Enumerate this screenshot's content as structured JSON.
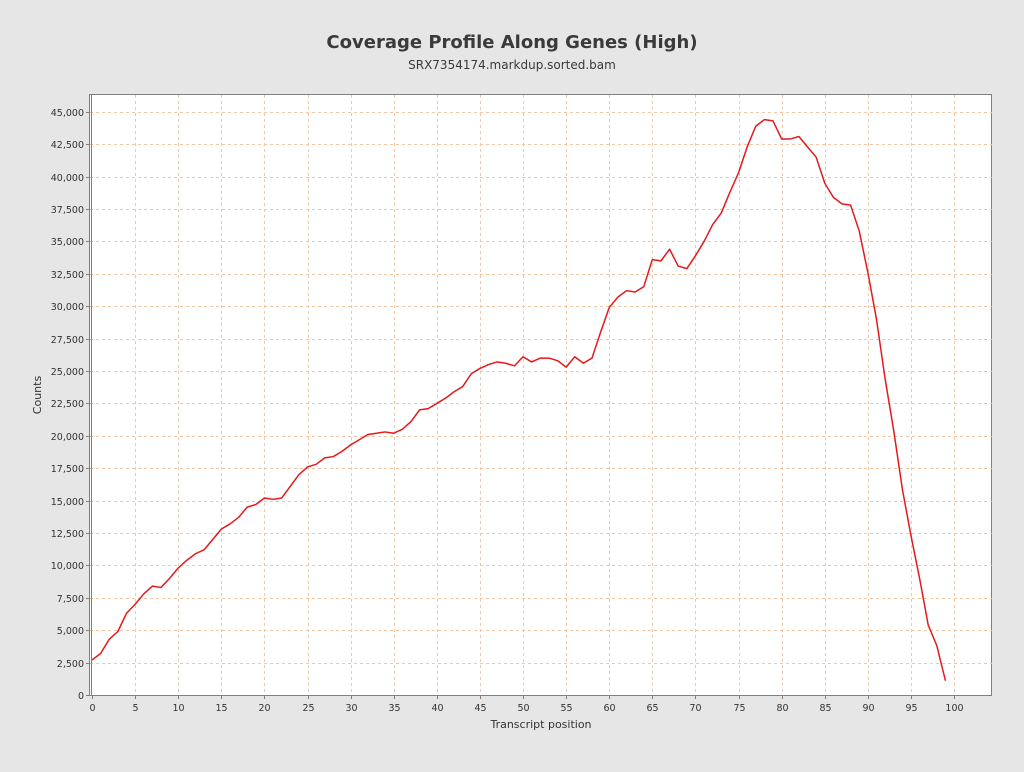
{
  "chart_data": {
    "type": "line",
    "title": "Coverage Profile Along Genes (High)",
    "subtitle": "SRX7354174.markdup.sorted.bam",
    "xlabel": "Transcript position",
    "ylabel": "Counts",
    "xlim": [
      0,
      104.4
    ],
    "ylim": [
      0,
      46300
    ],
    "grid": true,
    "x_ticks": [
      0,
      5,
      10,
      15,
      20,
      25,
      30,
      35,
      40,
      45,
      50,
      55,
      60,
      65,
      70,
      75,
      80,
      85,
      90,
      95,
      100
    ],
    "x_tick_labels": [
      "0",
      "5",
      "10",
      "15",
      "20",
      "25",
      "30",
      "35",
      "40",
      "45",
      "50",
      "55",
      "60",
      "65",
      "70",
      "75",
      "80",
      "85",
      "90",
      "95",
      "100"
    ],
    "y_ticks": [
      0,
      2500,
      5000,
      7500,
      10000,
      12500,
      15000,
      17500,
      20000,
      22500,
      25000,
      27500,
      30000,
      32500,
      35000,
      37500,
      40000,
      42500,
      45000
    ],
    "y_tick_labels": [
      "0",
      "2,500",
      "5,000",
      "7,500",
      "10,000",
      "12,500",
      "15,000",
      "17,500",
      "20,000",
      "22,500",
      "25,000",
      "27,500",
      "30,000",
      "32,500",
      "35,000",
      "37,500",
      "40,000",
      "42,500",
      "45,000"
    ],
    "series": [
      {
        "color": "#e31a1c",
        "x": [
          0,
          1,
          2,
          3,
          4,
          5,
          6,
          7,
          8,
          9,
          10,
          11,
          12,
          13,
          14,
          15,
          16,
          17,
          18,
          19,
          20,
          21,
          22,
          23,
          24,
          25,
          26,
          27,
          28,
          29,
          30,
          31,
          32,
          33,
          34,
          35,
          36,
          37,
          38,
          39,
          40,
          41,
          42,
          43,
          44,
          45,
          46,
          47,
          48,
          49,
          50,
          51,
          52,
          53,
          54,
          55,
          56,
          57,
          58,
          59,
          60,
          61,
          62,
          63,
          64,
          65,
          66,
          67,
          68,
          69,
          70,
          71,
          72,
          73,
          74,
          75,
          76,
          77,
          78,
          79,
          80,
          81,
          82,
          83,
          84,
          85,
          86,
          87,
          88,
          89,
          90,
          91,
          92,
          93,
          94,
          95,
          96,
          97,
          98,
          99
        ],
        "values": [
          2700,
          3200,
          4300,
          4900,
          6300,
          7000,
          7800,
          8400,
          8300,
          9000,
          9800,
          10400,
          10900,
          11200,
          12000,
          12800,
          13200,
          13700,
          14500,
          14700,
          15200,
          15100,
          15200,
          16100,
          17000,
          17600,
          17800,
          18300,
          18400,
          18800,
          19300,
          19700,
          20100,
          20200,
          20300,
          20200,
          20500,
          21100,
          22000,
          22100,
          22500,
          22900,
          23400,
          23800,
          24800,
          25200,
          25500,
          25700,
          25600,
          25400,
          26100,
          25700,
          26000,
          26000,
          25800,
          25300,
          26100,
          25600,
          26000,
          28000,
          29900,
          30700,
          31200,
          31100,
          31500,
          33600,
          33500,
          34400,
          33100,
          32900,
          33900,
          35000,
          36300,
          37200,
          38800,
          40300,
          42300,
          43900,
          44400,
          44300,
          42900,
          42900,
          43100,
          42300,
          41500,
          39500,
          38400,
          37900,
          37800,
          35800,
          32600,
          29000,
          24400,
          20400,
          15900,
          12300,
          9000,
          5400,
          3800,
          1100
        ]
      }
    ]
  }
}
